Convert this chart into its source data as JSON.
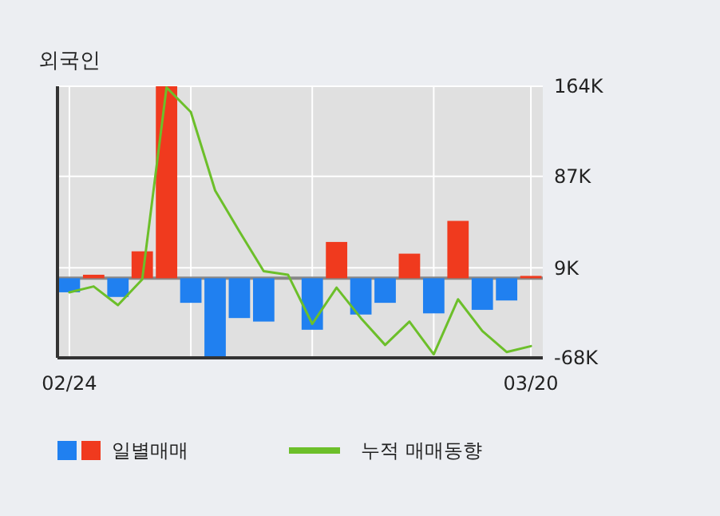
{
  "chart_data": {
    "type": "bar",
    "title": "외국인",
    "categories": [
      "02/24",
      null,
      null,
      null,
      null,
      null,
      null,
      null,
      null,
      null,
      null,
      null,
      null,
      null,
      null,
      null,
      null,
      null,
      null,
      "03/20"
    ],
    "series": [
      {
        "name": "일별매매",
        "colors": [
          "#2080f0",
          "#f03a1e",
          "#2080f0",
          "#f03a1e",
          "#f03a1e",
          "#2080f0",
          "#2080f0",
          "#2080f0",
          "#2080f0",
          "#2080f0",
          "#2080f0",
          "#f03a1e",
          "#2080f0",
          "#2080f0",
          "#f03a1e",
          "#2080f0",
          "#f03a1e",
          "#2080f0",
          "#2080f0",
          "#f03a1e"
        ],
        "values": [
          -12,
          3,
          -16,
          23,
          164,
          -21,
          -68,
          -34,
          -37,
          0,
          -44,
          31,
          -31,
          -21,
          21,
          -30,
          49,
          -27,
          -19,
          2
        ]
      },
      {
        "name": "누적 매매동향",
        "type": "line",
        "color": "#6cbf2a",
        "values": [
          -12,
          -7,
          -23,
          -1,
          163,
          142,
          75,
          40,
          6,
          3,
          -39,
          -8,
          -34,
          -57,
          -37,
          -65,
          -18,
          -45,
          -63,
          -58
        ]
      }
    ],
    "ylim": [
      -68,
      164
    ],
    "yticks": [
      {
        "value": 164,
        "label": "164K"
      },
      {
        "value": 87,
        "label": "87K"
      },
      {
        "value": 9,
        "label": "9K"
      },
      {
        "value": -68,
        "label": "-68K"
      }
    ],
    "grid": true,
    "legend": "bottom"
  }
}
